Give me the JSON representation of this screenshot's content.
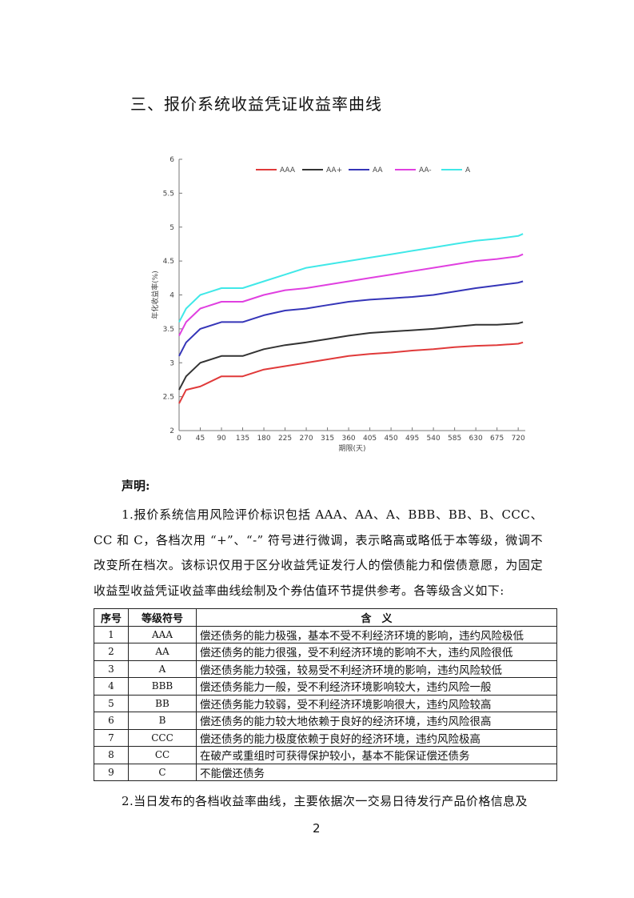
{
  "heading": "三、报价系统收益凭证收益率曲线",
  "chart_data": {
    "type": "line",
    "x_label": "期限(天)",
    "y_label": "年化收益率(%)",
    "x": [
      0,
      15,
      45,
      90,
      135,
      180,
      225,
      270,
      315,
      360,
      405,
      450,
      495,
      540,
      585,
      630,
      675,
      720,
      730
    ],
    "series": [
      {
        "name": "AAA",
        "color": "#e03a3a",
        "values": [
          2.4,
          2.6,
          2.65,
          2.8,
          2.8,
          2.9,
          2.95,
          3.0,
          3.05,
          3.1,
          3.13,
          3.15,
          3.18,
          3.2,
          3.23,
          3.25,
          3.26,
          3.28,
          3.3
        ]
      },
      {
        "name": "AA+",
        "color": "#333333",
        "values": [
          2.6,
          2.8,
          3.0,
          3.1,
          3.1,
          3.2,
          3.26,
          3.3,
          3.35,
          3.4,
          3.44,
          3.46,
          3.48,
          3.5,
          3.53,
          3.56,
          3.56,
          3.58,
          3.6
        ]
      },
      {
        "name": "AA",
        "color": "#3535b8",
        "values": [
          3.1,
          3.3,
          3.5,
          3.6,
          3.6,
          3.7,
          3.77,
          3.8,
          3.85,
          3.9,
          3.93,
          3.95,
          3.97,
          4.0,
          4.05,
          4.1,
          4.14,
          4.18,
          4.2
        ]
      },
      {
        "name": "AA-",
        "color": "#e040e0",
        "values": [
          3.4,
          3.6,
          3.8,
          3.9,
          3.9,
          4.0,
          4.07,
          4.1,
          4.15,
          4.2,
          4.25,
          4.3,
          4.35,
          4.4,
          4.45,
          4.5,
          4.53,
          4.57,
          4.6
        ]
      },
      {
        "name": "A",
        "color": "#40e8e8",
        "values": [
          3.6,
          3.8,
          4.0,
          4.1,
          4.1,
          4.2,
          4.3,
          4.4,
          4.45,
          4.5,
          4.55,
          4.6,
          4.65,
          4.7,
          4.75,
          4.8,
          4.83,
          4.87,
          4.9
        ]
      }
    ],
    "xlim": [
      0,
      735
    ],
    "xticks": [
      0,
      45,
      90,
      135,
      180,
      225,
      270,
      315,
      360,
      405,
      450,
      495,
      540,
      585,
      630,
      675,
      720
    ],
    "ylim": [
      2,
      6
    ],
    "yticks": [
      2,
      2.5,
      3,
      3.5,
      4,
      4.5,
      5,
      5.5,
      6
    ],
    "legend": "top"
  },
  "declaration": {
    "title": "声明:",
    "paragraph_1": "1.报价系统信用风险评价标识包括 AAA、AA、A、BBB、BB、B、CCC、CC 和 C，各档次用 “+”、“-” 符号进行微调，表示略高或略低于本等级，微调不改变所在档次。该标识仅用于区分收益凭证发行人的偿债能力和偿债意愿，为固定收益型收益凭证收益率曲线绘制及个券估值环节提供参考。各等级含义如下:",
    "paragraph_2": "2.当日发布的各档收益率曲线，主要依据次一交易日待发行产品价格信息及"
  },
  "table": {
    "header": [
      "序号",
      "等级符号",
      "含　义"
    ],
    "rows": [
      [
        "1",
        "AAA",
        "偿还债务的能力极强，基本不受不利经济环境的影响，违约风险极低"
      ],
      [
        "2",
        "AA",
        "偿还债务的能力很强，受不利经济环境的影响不大，违约风险很低"
      ],
      [
        "3",
        "A",
        "偿还债务能力较强，较易受不利经济环境的影响，违约风险较低"
      ],
      [
        "4",
        "BBB",
        "偿还债务能力一般，受不利经济环境影响较大，违约风险一般"
      ],
      [
        "5",
        "BB",
        "偿还债务能力较弱，受不利经济环境影响很大，违约风险较高"
      ],
      [
        "6",
        "B",
        "偿还债务的能力较大地依赖于良好的经济环境，违约风险很高"
      ],
      [
        "7",
        "CCC",
        "偿还债务的能力极度依赖于良好的经济环境，违约风险极高"
      ],
      [
        "8",
        "CC",
        "在破产或重组时可获得保护较小，基本不能保证偿还债务"
      ],
      [
        "9",
        "C",
        "不能偿还债务"
      ]
    ]
  },
  "page_number": "2"
}
